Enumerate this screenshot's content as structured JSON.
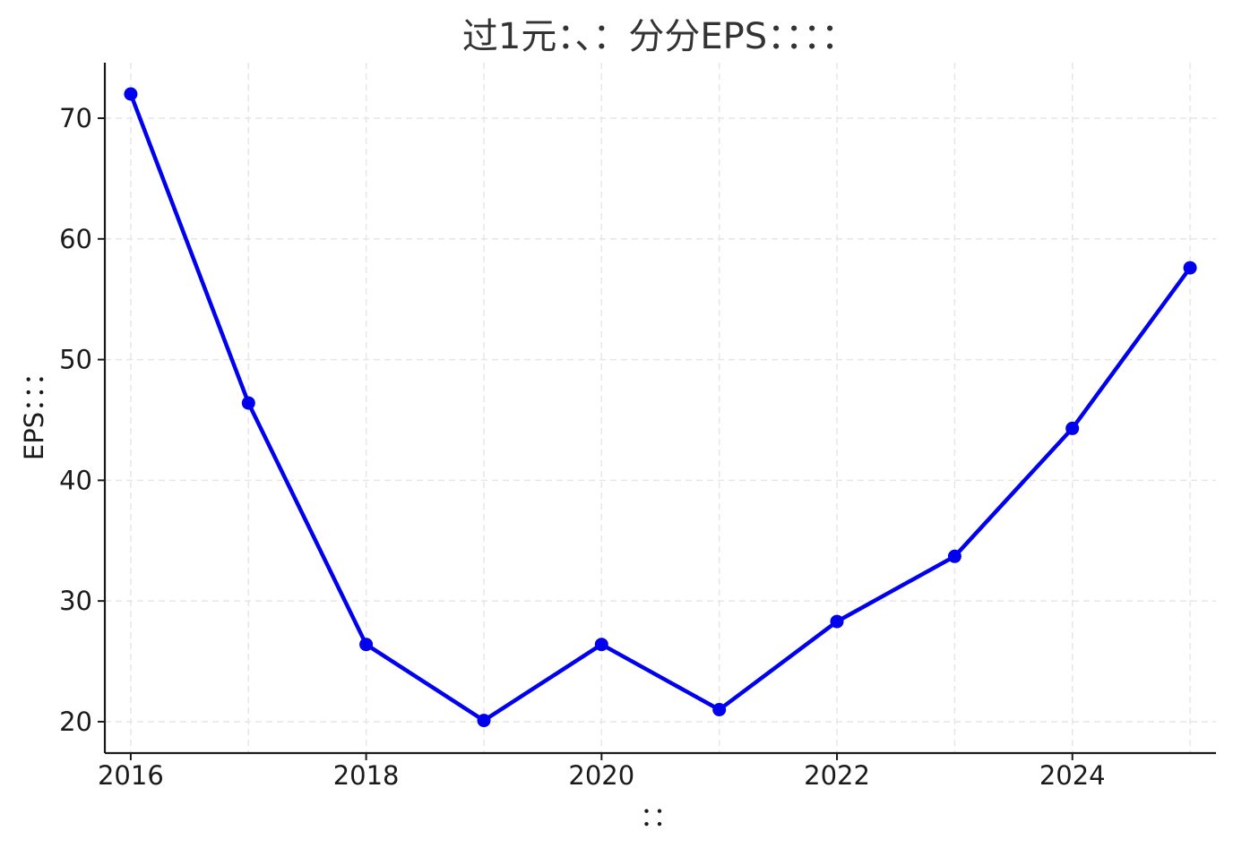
{
  "chart_data": {
    "type": "line",
    "title": "过1元：、：分分EPS：：：：",
    "xlabel": "：：",
    "ylabel": "EPS：：：",
    "x": [
      2016,
      2017,
      2018,
      2019,
      2020,
      2021,
      2022,
      2023,
      2024,
      2025
    ],
    "series": [
      {
        "values": [
          72.0,
          46.4,
          26.4,
          20.1,
          26.4,
          21.0,
          28.3,
          33.7,
          44.3,
          57.6
        ],
        "color": "#0000ee"
      }
    ],
    "xticks": [
      2016,
      2018,
      2020,
      2022,
      2024
    ],
    "yticks": [
      20,
      30,
      40,
      50,
      60,
      70
    ],
    "xlim": [
      2015.78,
      2025.22
    ],
    "ylim": [
      17.4,
      74.6
    ],
    "grid": true,
    "legend": "none"
  }
}
